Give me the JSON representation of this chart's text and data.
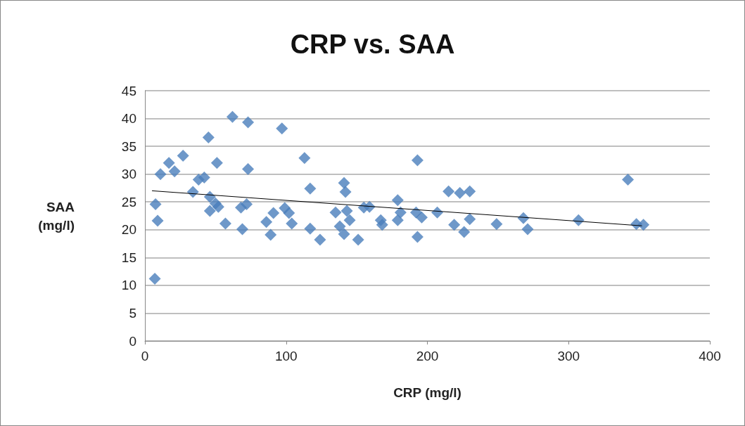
{
  "chart_data": {
    "type": "scatter",
    "title": "CRP vs. SAA",
    "xlabel": "CRP (mg/l)",
    "ylabel": "SAA\n(mg/l)",
    "marker": "diamond",
    "grid": "y",
    "xlim": [
      0,
      400
    ],
    "xticks": [
      0,
      100,
      200,
      300,
      400
    ],
    "ylim": [
      0,
      45
    ],
    "yticks": [
      0,
      5,
      10,
      15,
      20,
      25,
      30,
      35,
      40,
      45
    ],
    "series": [
      {
        "color": "#4a7ebb",
        "x": [
          7,
          7.5,
          9,
          11,
          17,
          21,
          27,
          34,
          38,
          42,
          45,
          46,
          46,
          50,
          51,
          52,
          57,
          62,
          68,
          69,
          72,
          73,
          73,
          86,
          89,
          91,
          97,
          99,
          102,
          104,
          113,
          117,
          117,
          124,
          135,
          141,
          142,
          138,
          141,
          143,
          145,
          151,
          155,
          159,
          167,
          168,
          179,
          179,
          181,
          193,
          193,
          192,
          196,
          207,
          215,
          219,
          223,
          230,
          226,
          230,
          249,
          268,
          271,
          307,
          342,
          348,
          353
        ],
        "values": [
          11.2,
          24.6,
          21.6,
          30,
          32,
          30.5,
          33.3,
          26.8,
          29,
          29.4,
          36.6,
          25.9,
          23.4,
          24.7,
          32,
          24.1,
          21.1,
          40.3,
          24,
          20.1,
          24.6,
          39.3,
          30.9,
          21.4,
          19.1,
          23,
          38.2,
          23.9,
          23,
          21.1,
          32.9,
          27.4,
          20.2,
          18.2,
          23.1,
          28.4,
          26.8,
          20.6,
          19.2,
          23.4,
          21.7,
          18.2,
          24,
          24.1,
          21.7,
          20.9,
          25.3,
          21.7,
          23.1,
          32.5,
          18.7,
          23.1,
          22.2,
          23.1,
          26.9,
          20.9,
          26.6,
          26.9,
          19.6,
          21.9,
          21,
          22.1,
          20.1,
          21.7,
          29,
          21,
          20.9
        ]
      },
      {
        "type": "line",
        "color": "#000000",
        "marker": "none",
        "x": [
          5,
          352
        ],
        "values": [
          27,
          20.7
        ]
      }
    ]
  }
}
